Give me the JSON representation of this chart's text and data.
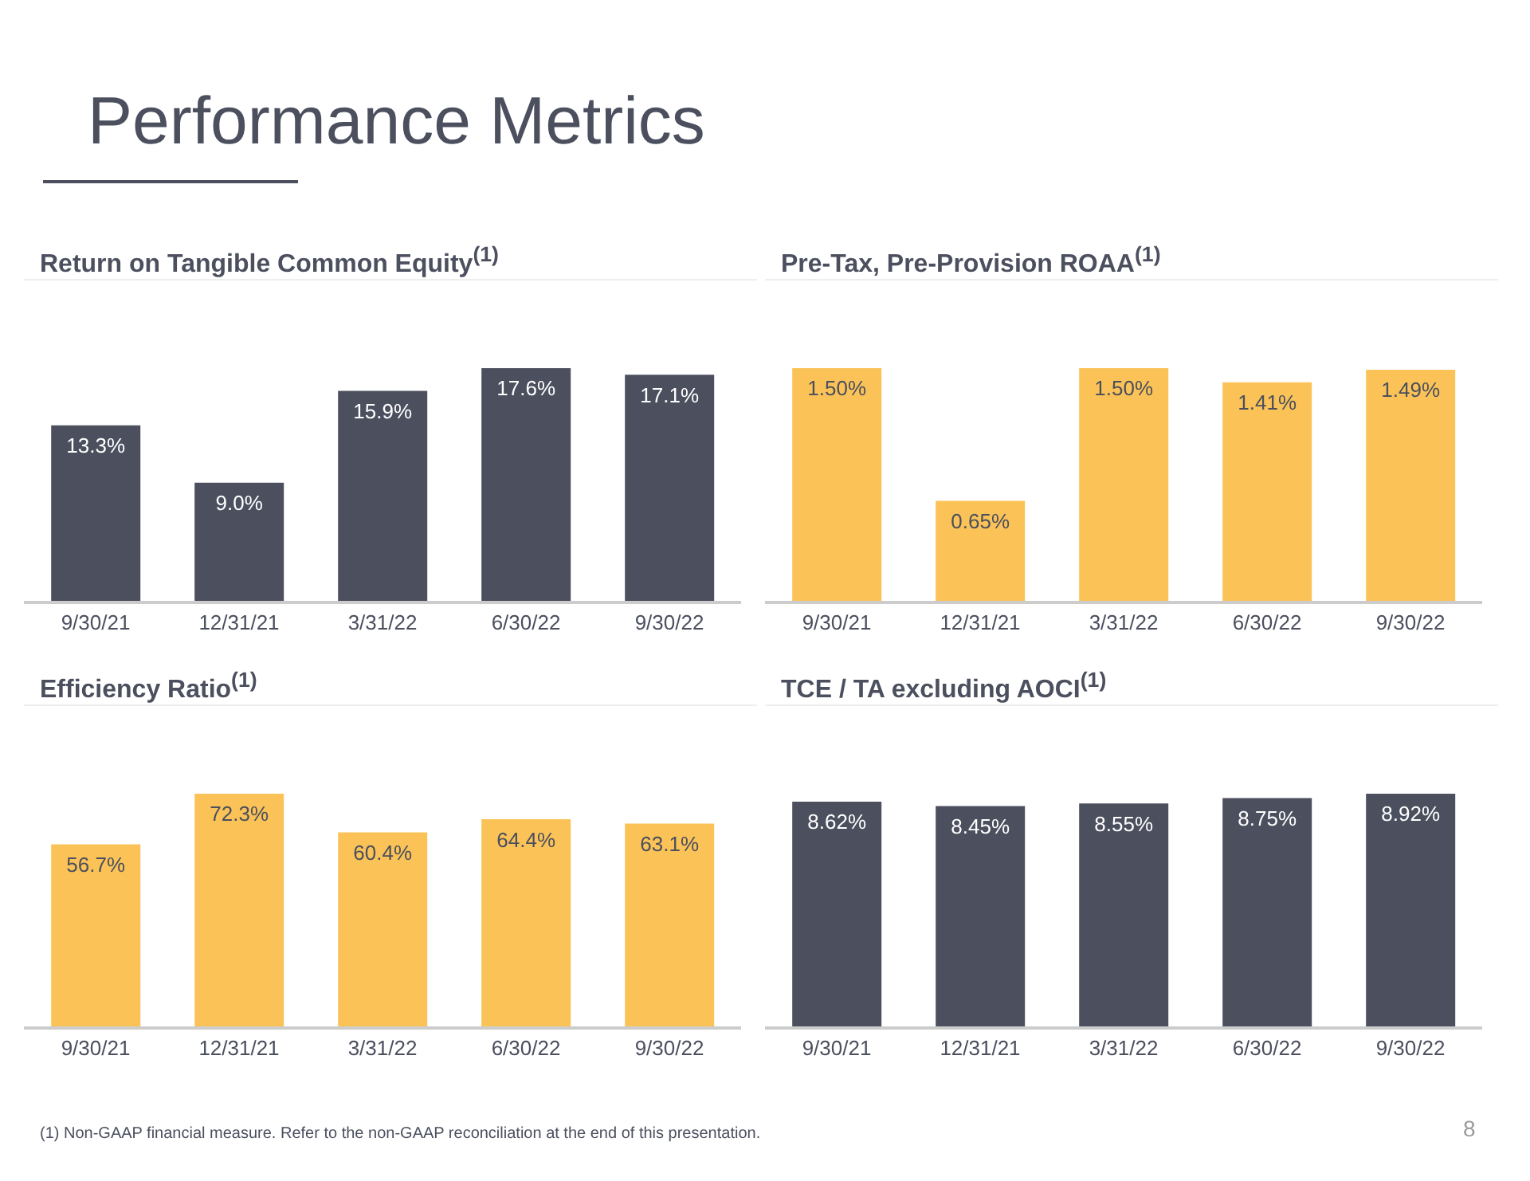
{
  "chart_data": [
    {
      "type": "other",
      "title": "Performance Metrics",
      "annotations": [
        "(1)   Non-GAAP financial measure.  Refer to the non-GAAP reconciliation at the end of this presentation.",
        "8"
      ]
    },
    {
      "type": "bar",
      "title": "Return on Tangible Common Equity$^{(1)}$",
      "categories": [
        "9/30/21",
        "12/31/21",
        "3/31/22",
        "6/30/22",
        "9/30/22"
      ],
      "values": [
        13.3,
        9.0,
        15.9,
        17.6,
        17.1
      ],
      "color": "#4b4f5e",
      "value_labels": [
        "13.3%",
        "9.0%",
        "15.9%",
        "17.6%",
        "17.1%"
      ]
    },
    {
      "type": "bar",
      "title": "Pre-Tax, Pre-Provision ROAA$^{(1)}$",
      "categories": [
        "9/30/21",
        "12/31/21",
        "3/31/22",
        "6/30/22",
        "9/30/22"
      ],
      "values": [
        1.5,
        0.65,
        1.5,
        1.41,
        1.49
      ],
      "color": "#fbc357",
      "value_labels": [
        "1.50%",
        "0.65%",
        "1.50%",
        "1.41%",
        "1.49%"
      ]
    },
    {
      "type": "bar",
      "title": "Efficiency Ratio$^{(1)}$",
      "categories": [
        "9/30/21",
        "12/31/21",
        "3/31/22",
        "6/30/22",
        "9/30/22"
      ],
      "values": [
        56.7,
        72.3,
        60.4,
        64.4,
        63.1
      ],
      "color": "#fbc357",
      "value_labels": [
        "56.7%",
        "72.3%",
        "60.4%",
        "64.4%",
        "63.1%"
      ]
    },
    {
      "type": "bar",
      "title": "TCE / TA excluding AOCI$^{(1)}$",
      "categories": [
        "9/30/21",
        "12/31/21",
        "3/31/22",
        "6/30/22",
        "9/30/22"
      ],
      "values": [
        8.62,
        8.45,
        8.55,
        8.75,
        8.92
      ],
      "color": "#4b4f5e",
      "value_labels": [
        "8.62%",
        "8.45%",
        "8.55%",
        "8.75%",
        "8.92%"
      ]
    }
  ]
}
